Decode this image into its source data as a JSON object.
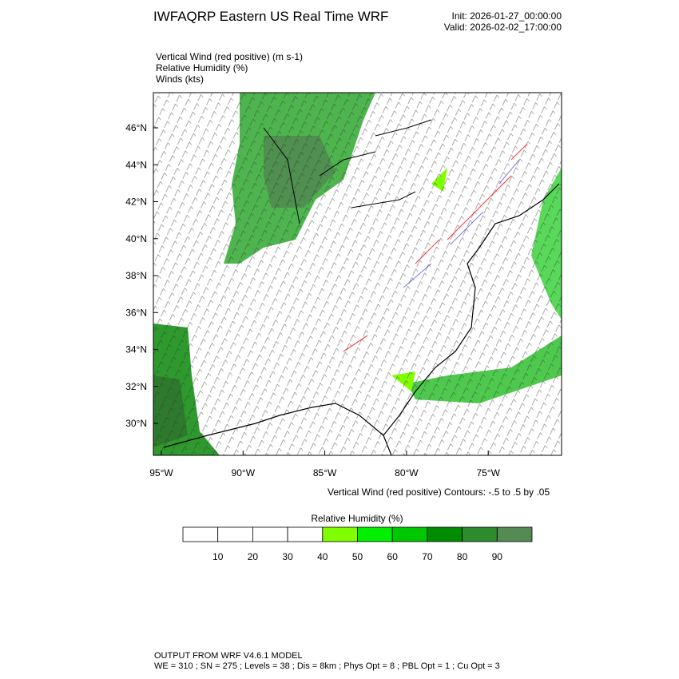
{
  "header": {
    "title": "IWFAQRP Eastern US Real Time WRF",
    "init": "Init: 2026-01-27_00:00:00",
    "valid": "Valid: 2026-02-02_17:00:00"
  },
  "fields": [
    "Vertical Wind (red positive)   (m s-1)",
    "Relative Humidity   (%)",
    "Winds   (kts)"
  ],
  "map": {
    "lat_labels": [
      "46°N",
      "44°N",
      "42°N",
      "40°N",
      "38°N",
      "36°N",
      "34°N",
      "32°N",
      "30°N"
    ],
    "lon_labels": [
      "95°W",
      "90°W",
      "85°W",
      "80°W",
      "75°W"
    ],
    "contour_note": "Vertical Wind (red positive) Contours: -.5 to .5 by .05"
  },
  "colorbar": {
    "title": "Relative Humidity  (%)",
    "labels": [
      10,
      20,
      30,
      40,
      50,
      60,
      70,
      80,
      90
    ],
    "colors": [
      "#ffffff",
      "#ffffff",
      "#ffffff",
      "#ffffff",
      "#7fff00",
      "#00f000",
      "#00c800",
      "#008c00",
      "#2d8a2d",
      "#558a55"
    ]
  },
  "footer": [
    "OUTPUT FROM WRF V4.6.1 MODEL",
    "WE = 310 ; SN = 275 ; Levels = 38 ; Dis = 8km ; Phys Opt = 8 ; PBL Opt = 1 ; Cu Opt = 3"
  ]
}
